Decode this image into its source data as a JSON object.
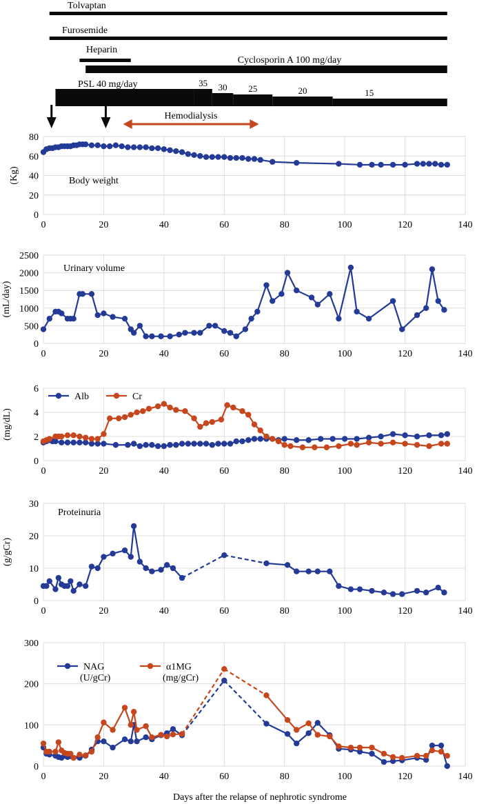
{
  "colors": {
    "blue": "#233a97",
    "orange": "#c6471d",
    "black": "#0a0a0a",
    "grid": "#dcdcdc"
  },
  "xlabel": "Days after the relapse of nephrotic syndrome",
  "treatment_timeline": {
    "drugs": [
      {
        "label": "Tolvaptan",
        "start": 2,
        "end": 134,
        "weight": "thin"
      },
      {
        "label": "Furosemide",
        "start": 2,
        "end": 134,
        "weight": "thin"
      },
      {
        "label": "Heparin",
        "start": 12,
        "end": 29,
        "weight": "thin"
      },
      {
        "label": "Cyclosporin A 100 mg/day",
        "start": 14,
        "end": 134,
        "weight": "thick"
      }
    ],
    "psl": {
      "label": "PSL 40 mg/day",
      "steps": [
        {
          "label": "40",
          "start": 4,
          "end": 50,
          "show_label": false
        },
        {
          "label": "35",
          "start": 50,
          "end": 56
        },
        {
          "label": "30",
          "start": 56,
          "end": 63
        },
        {
          "label": "25",
          "start": 63,
          "end": 76
        },
        {
          "label": "20",
          "start": 76,
          "end": 96
        },
        {
          "label": "15",
          "start": 96,
          "end": 134
        }
      ]
    },
    "arrows_down": [
      2,
      20
    ],
    "hemodialysis": {
      "label": "Hemodialysis",
      "start": 26,
      "end": 71
    }
  },
  "chart_data": [
    {
      "type": "line",
      "name": "body-weight",
      "ylabel": "(Kg)",
      "annotation": "Body weight",
      "ylim": [
        0,
        80
      ],
      "yticks": [
        0,
        20,
        40,
        60,
        80
      ],
      "xlim": [
        0,
        140
      ],
      "xticks": [
        0,
        20,
        40,
        60,
        80,
        100,
        120,
        140
      ],
      "series": [
        {
          "name": "Body weight",
          "color": "blue",
          "x": [
            0,
            1,
            2,
            3,
            4,
            5,
            6,
            7,
            8,
            9,
            10,
            11,
            12,
            13,
            14,
            16,
            18,
            20,
            22,
            24,
            26,
            28,
            30,
            32,
            34,
            36,
            38,
            40,
            42,
            44,
            46,
            48,
            50,
            52,
            54,
            56,
            58,
            60,
            62,
            64,
            66,
            68,
            70,
            72,
            76,
            84,
            98,
            105,
            109,
            112,
            116,
            120,
            124,
            126,
            128,
            130,
            132,
            134
          ],
          "y": [
            64,
            67,
            68,
            68,
            69,
            69,
            70,
            70,
            70,
            70,
            71,
            71,
            72,
            72,
            72,
            71,
            71,
            70,
            70,
            71,
            70,
            69,
            69,
            69,
            69,
            68,
            68,
            67,
            66,
            65,
            64,
            62,
            61,
            60,
            59,
            59,
            59,
            59,
            58,
            58,
            58,
            57,
            57,
            56,
            54,
            53,
            52,
            51,
            51,
            51,
            51,
            51,
            52,
            52,
            52,
            52,
            51,
            51
          ],
          "dashed_segments": []
        }
      ]
    },
    {
      "type": "line",
      "name": "urinary-volume",
      "ylabel": "(mL/day)",
      "annotation": "Urinary volume",
      "ylim": [
        0,
        2500
      ],
      "yticks": [
        0,
        500,
        1000,
        1500,
        2000,
        2500
      ],
      "xlim": [
        0,
        140
      ],
      "xticks": [
        0,
        20,
        40,
        60,
        80,
        100,
        120,
        140
      ],
      "series": [
        {
          "name": "Urinary volume",
          "color": "blue",
          "x": [
            0,
            2,
            4,
            5,
            6,
            8,
            9,
            10,
            12,
            13,
            16,
            18,
            20,
            23,
            27,
            29,
            30,
            32,
            34,
            36,
            39,
            42,
            45,
            47,
            50,
            52,
            55,
            57,
            60,
            62,
            64,
            67,
            69,
            71,
            74,
            76,
            79,
            81,
            84,
            89,
            91,
            95,
            98,
            102,
            104,
            108,
            116,
            119,
            124,
            127,
            129,
            131,
            133
          ],
          "y": [
            400,
            700,
            900,
            900,
            850,
            700,
            700,
            700,
            1400,
            1400,
            1400,
            800,
            850,
            750,
            700,
            400,
            300,
            500,
            200,
            200,
            200,
            200,
            250,
            300,
            300,
            300,
            500,
            500,
            350,
            300,
            200,
            400,
            700,
            900,
            1650,
            1200,
            1400,
            2000,
            1500,
            1300,
            1100,
            1400,
            700,
            2150,
            900,
            700,
            1200,
            400,
            800,
            1000,
            2100,
            1200,
            950
          ],
          "dashed_segments": []
        }
      ]
    },
    {
      "type": "line",
      "name": "alb-cr",
      "ylabel": "(mg/dL)",
      "annotation": "",
      "legend": [
        {
          "label": "Alb",
          "color": "blue"
        },
        {
          "label": "Cr",
          "color": "orange"
        }
      ],
      "ylim": [
        0,
        6
      ],
      "yticks": [
        0,
        2,
        4,
        6
      ],
      "xlim": [
        0,
        140
      ],
      "xticks": [
        0,
        20,
        40,
        60,
        80,
        100,
        120,
        140
      ],
      "series": [
        {
          "name": "Alb",
          "color": "blue",
          "x": [
            0,
            1,
            2,
            3,
            4,
            6,
            8,
            10,
            12,
            14,
            16,
            18,
            20,
            24,
            28,
            30,
            32,
            34,
            36,
            38,
            40,
            42,
            44,
            46,
            48,
            50,
            52,
            54,
            56,
            58,
            60,
            62,
            64,
            66,
            68,
            70,
            72,
            74,
            76,
            78,
            80,
            84,
            88,
            92,
            96,
            100,
            104,
            108,
            112,
            116,
            120,
            124,
            128,
            132,
            134
          ],
          "y": [
            1.5,
            1.6,
            1.7,
            1.6,
            1.6,
            1.5,
            1.5,
            1.5,
            1.5,
            1.5,
            1.4,
            1.4,
            1.4,
            1.3,
            1.3,
            1.4,
            1.2,
            1.3,
            1.3,
            1.2,
            1.2,
            1.3,
            1.3,
            1.4,
            1.4,
            1.4,
            1.4,
            1.4,
            1.3,
            1.4,
            1.4,
            1.4,
            1.6,
            1.6,
            1.7,
            1.8,
            1.8,
            1.8,
            1.8,
            1.7,
            1.8,
            1.7,
            1.7,
            1.8,
            1.8,
            1.8,
            1.8,
            1.9,
            2.0,
            2.2,
            2.1,
            2.0,
            2.1,
            2.1,
            2.2
          ],
          "dashed_segments": []
        },
        {
          "name": "Cr",
          "color": "orange",
          "x": [
            0,
            1,
            2,
            4,
            5,
            6,
            8,
            10,
            12,
            14,
            16,
            18,
            20,
            22,
            25,
            27,
            29,
            31,
            33,
            35,
            38,
            40,
            42,
            44,
            47,
            50,
            52,
            54,
            56,
            59,
            61,
            63,
            66,
            68,
            70,
            72,
            74,
            76,
            78,
            80,
            82,
            86,
            90,
            94,
            98,
            102,
            104,
            108,
            112,
            116,
            120,
            124,
            128,
            132,
            134
          ],
          "y": [
            1.6,
            1.7,
            1.8,
            2.0,
            2.0,
            2.0,
            2.1,
            2.1,
            2.0,
            1.9,
            1.8,
            1.8,
            2.2,
            3.5,
            3.5,
            3.6,
            3.8,
            4.0,
            4.1,
            4.3,
            4.5,
            4.7,
            4.4,
            4.2,
            4.1,
            3.5,
            2.8,
            3.1,
            3.2,
            3.4,
            4.6,
            4.4,
            4.1,
            3.8,
            3.0,
            2.5,
            2.0,
            1.8,
            1.6,
            1.3,
            1.2,
            1.1,
            1.1,
            1.1,
            1.2,
            1.4,
            1.3,
            1.5,
            1.4,
            1.5,
            1.4,
            1.3,
            1.2,
            1.4,
            1.4
          ],
          "dashed_segments": []
        }
      ]
    },
    {
      "type": "line",
      "name": "proteinuria",
      "ylabel": "(g/gCr)",
      "annotation": "Proteinuria",
      "ylim": [
        0,
        30
      ],
      "yticks": [
        0,
        10,
        20,
        30
      ],
      "xlim": [
        0,
        140
      ],
      "xticks": [
        0,
        20,
        40,
        60,
        80,
        100,
        120,
        140
      ],
      "series": [
        {
          "name": "Proteinuria",
          "color": "blue",
          "x": [
            0,
            1,
            2,
            4,
            5,
            6,
            7,
            8,
            9,
            10,
            12,
            14,
            16,
            18,
            20,
            23,
            27,
            29,
            30,
            32,
            34,
            36,
            39,
            41,
            43,
            46,
            60,
            74,
            81,
            84,
            88,
            91,
            95,
            98,
            102,
            105,
            109,
            113,
            116,
            119,
            124,
            127,
            131,
            133
          ],
          "y": [
            4.5,
            4.5,
            6.0,
            3.5,
            7.0,
            5.0,
            4.5,
            4.5,
            6.0,
            3.0,
            5.0,
            4.5,
            10.5,
            10.0,
            13.5,
            14.5,
            15.5,
            13.5,
            23.0,
            12.0,
            10.0,
            9.0,
            9.5,
            11.0,
            10.0,
            7.0,
            14.0,
            11.5,
            11.0,
            9.0,
            9.0,
            9.0,
            9.0,
            4.5,
            3.5,
            3.5,
            3.0,
            2.5,
            2.0,
            2.0,
            3.0,
            2.5,
            4.0,
            2.5
          ],
          "dashed_segments": [
            [
              46,
              60
            ],
            [
              60,
              74
            ]
          ]
        }
      ]
    },
    {
      "type": "line",
      "name": "nag-a1mg",
      "ylabel": "",
      "annotation": "",
      "legend": [
        {
          "label": "NAG",
          "sublabel": "(U/gCr)",
          "color": "blue"
        },
        {
          "label": "α1MG",
          "sublabel": "(mg/gCr)",
          "color": "orange"
        }
      ],
      "ylim": [
        0,
        300
      ],
      "yticks": [
        0,
        100,
        200,
        300
      ],
      "xlim": [
        0,
        140
      ],
      "xticks": [
        0,
        20,
        40,
        60,
        80,
        100,
        120,
        140
      ],
      "series": [
        {
          "name": "NAG",
          "color": "blue",
          "x": [
            0,
            1,
            2,
            4,
            5,
            6,
            7,
            8,
            9,
            10,
            12,
            14,
            16,
            18,
            20,
            23,
            27,
            29,
            30,
            31,
            34,
            36,
            39,
            41,
            43,
            46,
            60,
            74,
            81,
            84,
            88,
            91,
            95,
            98,
            102,
            105,
            109,
            113,
            116,
            119,
            124,
            127,
            129,
            132,
            134
          ],
          "y": [
            45,
            30,
            28,
            25,
            22,
            20,
            25,
            22,
            24,
            20,
            20,
            25,
            40,
            60,
            60,
            45,
            65,
            60,
            100,
            60,
            70,
            65,
            75,
            80,
            90,
            75,
            208,
            103,
            78,
            55,
            80,
            105,
            75,
            42,
            40,
            35,
            30,
            10,
            12,
            14,
            20,
            15,
            50,
            50,
            0
          ],
          "dashed_segments": [
            [
              46,
              60
            ],
            [
              60,
              74
            ]
          ]
        },
        {
          "name": "α1MG",
          "color": "orange",
          "x": [
            0,
            1,
            2,
            4,
            5,
            6,
            7,
            8,
            9,
            10,
            12,
            14,
            16,
            18,
            20,
            23,
            27,
            29,
            30,
            31,
            34,
            36,
            39,
            41,
            43,
            46,
            60,
            74,
            81,
            84,
            88,
            91,
            95,
            98,
            102,
            105,
            109,
            113,
            116,
            119,
            124,
            127,
            129,
            132,
            134
          ],
          "y": [
            55,
            35,
            35,
            35,
            58,
            38,
            32,
            30,
            30,
            20,
            28,
            26,
            35,
            70,
            106,
            88,
            142,
            100,
            132,
            88,
            97,
            70,
            76,
            72,
            77,
            78,
            236,
            172,
            112,
            88,
            104,
            76,
            72,
            48,
            45,
            45,
            45,
            30,
            22,
            20,
            25,
            25,
            38,
            35,
            25
          ],
          "dashed_segments": [
            [
              46,
              60
            ],
            [
              60,
              74
            ]
          ]
        }
      ]
    }
  ]
}
